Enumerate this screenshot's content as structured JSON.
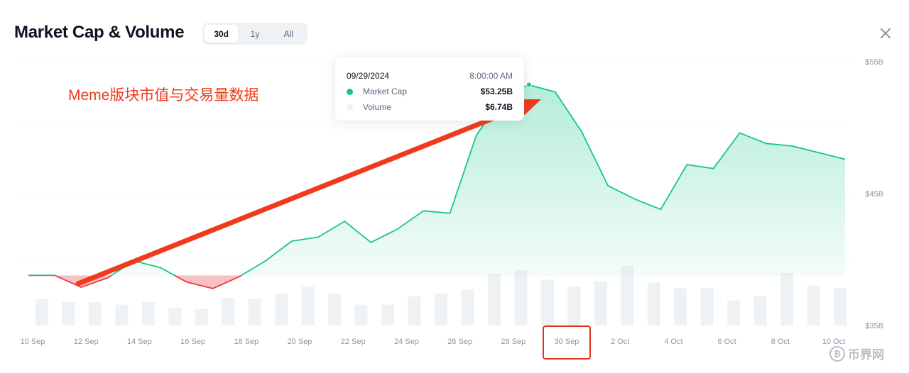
{
  "header": {
    "title": "Market Cap & Volume",
    "ranges": [
      "30d",
      "1y",
      "All"
    ],
    "active_range": "30d",
    "close_icon": "close-icon"
  },
  "tooltip": {
    "date": "09/29/2024",
    "time": "8:00:00 AM",
    "rows": [
      {
        "label": "Market Cap",
        "value": "$53.25B",
        "color": "#16c784"
      },
      {
        "label": "Volume",
        "value": "$6.74B",
        "color": "#eff2f5"
      }
    ]
  },
  "annotation": "Meme版块市值与交易量数据",
  "watermark": {
    "text": "币界网",
    "icon": "bitcoin-icon"
  },
  "colors": {
    "up_line": "#16c784",
    "down_line": "#ea3943",
    "volume_bar": "#eff2f5",
    "arrow": "#f03a1c",
    "highlight_box": "#e0321c"
  },
  "chart_data": {
    "type": "area",
    "x_ticks": [
      "10 Sep",
      "12 Sep",
      "14 Sep",
      "16 Sep",
      "18 Sep",
      "20 Sep",
      "22 Sep",
      "24 Sep",
      "26 Sep",
      "28 Sep",
      "30 Sep",
      "2 Oct",
      "4 Oct",
      "6 Oct",
      "8 Oct",
      "10 Oct"
    ],
    "y_ticks": [
      "$35B",
      "$45B",
      "$55B"
    ],
    "ylim": [
      35,
      55
    ],
    "baseline": 38.8,
    "highlighted_tick": "30 Sep",
    "market_cap_series": {
      "name": "Market Cap",
      "x": [
        "09/10",
        "09/11",
        "09/12",
        "09/13",
        "09/14",
        "09/15",
        "09/16",
        "09/17",
        "09/18",
        "09/19",
        "09/20",
        "09/21",
        "09/22",
        "09/23",
        "09/24",
        "09/25",
        "09/26",
        "09/27",
        "09/28",
        "09/29",
        "09/30",
        "10/01",
        "10/02",
        "10/03",
        "10/04",
        "10/05",
        "10/06",
        "10/07",
        "10/08",
        "10/09",
        "10/10",
        "10/10 (latest)"
      ],
      "values": [
        38.8,
        38.8,
        37.9,
        38.6,
        39.9,
        39.4,
        38.3,
        37.8,
        38.7,
        39.9,
        41.4,
        41.7,
        42.9,
        41.3,
        42.3,
        43.7,
        43.5,
        49.4,
        52.4,
        53.25,
        52.7,
        49.7,
        45.6,
        44.6,
        43.8,
        47.2,
        46.9,
        49.6,
        48.8,
        48.6,
        48.1,
        47.6
      ]
    },
    "volume_series": {
      "name": "Volume",
      "values": [
        1.9,
        1.7,
        1.7,
        1.5,
        1.7,
        1.3,
        1.2,
        2.0,
        1.9,
        2.3,
        2.8,
        2.3,
        1.5,
        1.5,
        2.1,
        2.3,
        2.6,
        3.7,
        4.0,
        3.3,
        2.8,
        3.2,
        4.3,
        3.1,
        2.7,
        2.7,
        1.8,
        2.1,
        3.8,
        2.9,
        2.7
      ]
    }
  }
}
